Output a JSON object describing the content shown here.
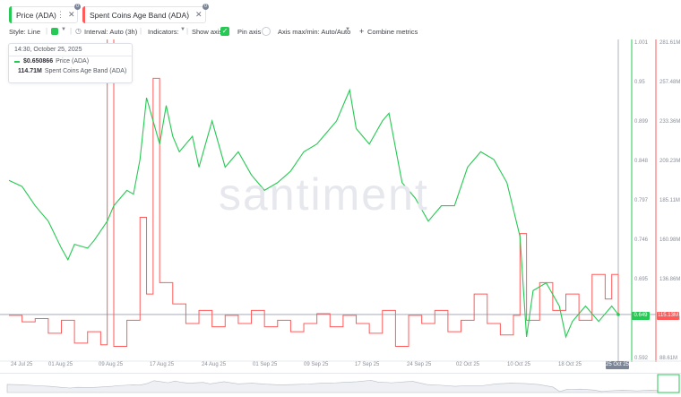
{
  "tabs": [
    {
      "label": "Price (ADA)",
      "color": "#26c953",
      "badge": "0"
    },
    {
      "label": "Spent Coins Age Band (ADA)",
      "color": "#ff5b5b",
      "badge": "0"
    }
  ],
  "toolbar": {
    "style": "Style: Line",
    "interval": "Interval: Auto (3h)",
    "indicators": "Indicators:",
    "show_axis": "Show axis",
    "pin_axis": "Pin axis",
    "axis_max_min": "Axis max/min: Auto/Auto",
    "combine": "Combine metrics",
    "plus": "+"
  },
  "tooltip": {
    "datetime": "14:30, October 25, 2025",
    "rows": [
      {
        "value": "$0.650866",
        "name": "Price (ADA)",
        "color": "#26c953"
      },
      {
        "value": "114.71M",
        "name": "Spent Coins Age Band (ADA)",
        "color": "#ff5b5b"
      }
    ]
  },
  "watermark": "santiment",
  "axis_price": [
    "1.001",
    "0.95",
    "0.899",
    "0.848",
    "0.797",
    "0.746",
    "0.695",
    "0.644",
    "0.592"
  ],
  "axis_spent": [
    "281.61M",
    "257.48M",
    "233.36M",
    "209.23M",
    "185.11M",
    "160.98M",
    "136.86M",
    "112.73M",
    "88.61M"
  ],
  "current_price_label": "0.649",
  "current_spent_label": "115.13M",
  "x_ticks": [
    "24 Jul 25",
    "01 Aug 25",
    "09 Aug 25",
    "17 Aug 25",
    "24 Aug 25",
    "01 Sep 25",
    "09 Sep 25",
    "17 Sep 25",
    "24 Sep 25",
    "02 Oct 25",
    "10 Oct 25",
    "18 Oct 25"
  ],
  "current_date": "25 Oct 25",
  "chart_data": {
    "type": "line",
    "x_range": [
      "2025-07-24",
      "2025-10-25"
    ],
    "series": [
      {
        "name": "Price (ADA)",
        "color": "#26c953",
        "axis_range": [
          0.592,
          1.001
        ],
        "points": [
          [
            "2025-07-24",
            0.823
          ],
          [
            "2025-07-26",
            0.815
          ],
          [
            "2025-07-28",
            0.79
          ],
          [
            "2025-07-30",
            0.77
          ],
          [
            "2025-08-01",
            0.735
          ],
          [
            "2025-08-02",
            0.72
          ],
          [
            "2025-08-03",
            0.74
          ],
          [
            "2025-08-05",
            0.735
          ],
          [
            "2025-08-06",
            0.745
          ],
          [
            "2025-08-08",
            0.77
          ],
          [
            "2025-08-09",
            0.79
          ],
          [
            "2025-08-10",
            0.8
          ],
          [
            "2025-08-11",
            0.81
          ],
          [
            "2025-08-12",
            0.805
          ],
          [
            "2025-08-13",
            0.85
          ],
          [
            "2025-08-14",
            0.93
          ],
          [
            "2025-08-15",
            0.9
          ],
          [
            "2025-08-16",
            0.87
          ],
          [
            "2025-08-17",
            0.92
          ],
          [
            "2025-08-18",
            0.88
          ],
          [
            "2025-08-19",
            0.86
          ],
          [
            "2025-08-21",
            0.88
          ],
          [
            "2025-08-22",
            0.84
          ],
          [
            "2025-08-24",
            0.9
          ],
          [
            "2025-08-26",
            0.84
          ],
          [
            "2025-08-28",
            0.86
          ],
          [
            "2025-08-30",
            0.83
          ],
          [
            "2025-09-01",
            0.81
          ],
          [
            "2025-09-03",
            0.82
          ],
          [
            "2025-09-05",
            0.835
          ],
          [
            "2025-09-07",
            0.86
          ],
          [
            "2025-09-09",
            0.87
          ],
          [
            "2025-09-10",
            0.88
          ],
          [
            "2025-09-12",
            0.9
          ],
          [
            "2025-09-14",
            0.94
          ],
          [
            "2025-09-15",
            0.89
          ],
          [
            "2025-09-17",
            0.87
          ],
          [
            "2025-09-19",
            0.9
          ],
          [
            "2025-09-20",
            0.91
          ],
          [
            "2025-09-22",
            0.82
          ],
          [
            "2025-09-24",
            0.8
          ],
          [
            "2025-09-26",
            0.77
          ],
          [
            "2025-09-28",
            0.79
          ],
          [
            "2025-09-30",
            0.79
          ],
          [
            "2025-10-02",
            0.84
          ],
          [
            "2025-10-04",
            0.86
          ],
          [
            "2025-10-06",
            0.85
          ],
          [
            "2025-10-08",
            0.82
          ],
          [
            "2025-10-10",
            0.75
          ],
          [
            "2025-10-11",
            0.62
          ],
          [
            "2025-10-12",
            0.68
          ],
          [
            "2025-10-14",
            0.69
          ],
          [
            "2025-10-16",
            0.66
          ],
          [
            "2025-10-17",
            0.62
          ],
          [
            "2025-10-18",
            0.64
          ],
          [
            "2025-10-20",
            0.66
          ],
          [
            "2025-10-22",
            0.64
          ],
          [
            "2025-10-24",
            0.66
          ],
          [
            "2025-10-25",
            0.649
          ]
        ]
      },
      {
        "name": "Spent Coins Age Band (ADA)",
        "color": "#ff5b5b",
        "axis_range": [
          88.61,
          281.61
        ],
        "unit": "M",
        "points": [
          [
            "2025-07-24",
            115
          ],
          [
            "2025-07-26",
            111
          ],
          [
            "2025-07-28",
            113
          ],
          [
            "2025-07-30",
            104
          ],
          [
            "2025-08-01",
            112
          ],
          [
            "2025-08-03",
            98
          ],
          [
            "2025-08-05",
            105
          ],
          [
            "2025-08-07",
            97
          ],
          [
            "2025-08-08",
            286
          ],
          [
            "2025-08-09",
            96
          ],
          [
            "2025-08-11",
            112
          ],
          [
            "2025-08-13",
            175
          ],
          [
            "2025-08-14",
            128
          ],
          [
            "2025-08-15",
            260
          ],
          [
            "2025-08-16",
            135
          ],
          [
            "2025-08-18",
            122
          ],
          [
            "2025-08-20",
            110
          ],
          [
            "2025-08-22",
            118
          ],
          [
            "2025-08-24",
            108
          ],
          [
            "2025-08-26",
            115
          ],
          [
            "2025-08-28",
            110
          ],
          [
            "2025-08-30",
            118
          ],
          [
            "2025-09-01",
            108
          ],
          [
            "2025-09-03",
            112
          ],
          [
            "2025-09-05",
            105
          ],
          [
            "2025-09-07",
            110
          ],
          [
            "2025-09-09",
            116
          ],
          [
            "2025-09-11",
            108
          ],
          [
            "2025-09-13",
            115
          ],
          [
            "2025-09-15",
            110
          ],
          [
            "2025-09-17",
            104
          ],
          [
            "2025-09-19",
            118
          ],
          [
            "2025-09-21",
            96
          ],
          [
            "2025-09-23",
            115
          ],
          [
            "2025-09-25",
            110
          ],
          [
            "2025-09-27",
            118
          ],
          [
            "2025-09-29",
            105
          ],
          [
            "2025-10-01",
            112
          ],
          [
            "2025-10-03",
            128
          ],
          [
            "2025-10-05",
            110
          ],
          [
            "2025-10-07",
            103
          ],
          [
            "2025-10-09",
            115
          ],
          [
            "2025-10-10",
            165
          ],
          [
            "2025-10-11",
            112
          ],
          [
            "2025-10-13",
            135
          ],
          [
            "2025-10-15",
            118
          ],
          [
            "2025-10-17",
            128
          ],
          [
            "2025-10-19",
            112
          ],
          [
            "2025-10-21",
            140
          ],
          [
            "2025-10-23",
            125
          ],
          [
            "2025-10-24",
            140
          ],
          [
            "2025-10-25",
            115
          ]
        ]
      }
    ],
    "current": {
      "price": 0.649,
      "spent": 115.13
    }
  }
}
